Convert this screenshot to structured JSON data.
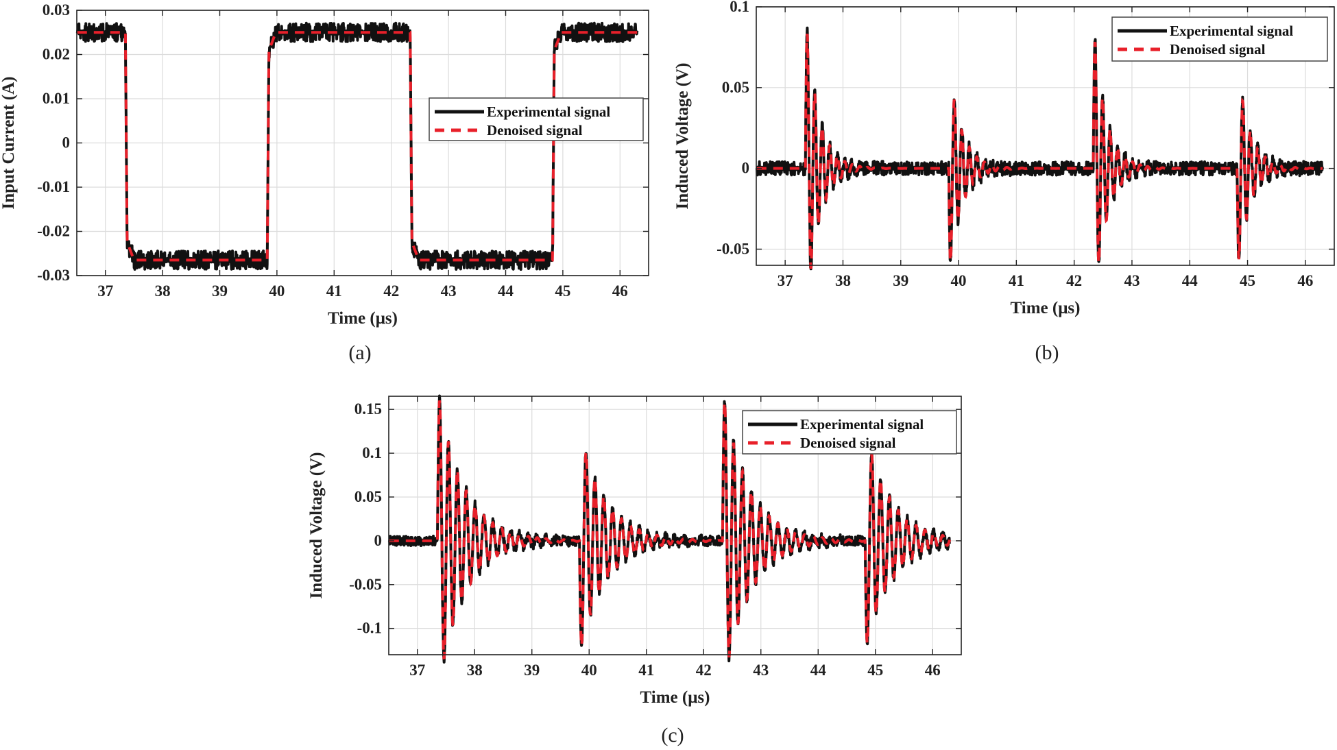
{
  "colors": {
    "experimental": "#111111",
    "denoised": "#e8202a",
    "grid": "#dcdcdc",
    "axis": "#222222"
  },
  "chart_data": [
    {
      "type": "line",
      "caption": "(a)",
      "xlabel": "Time (μs)",
      "ylabel": "Input Current (A)",
      "xlim": [
        36.5,
        46.5
      ],
      "ylim": [
        -0.03,
        0.03
      ],
      "xticks": [
        37,
        38,
        39,
        40,
        41,
        42,
        43,
        44,
        45,
        46
      ],
      "yticks": [
        -0.03,
        -0.02,
        -0.01,
        0,
        0.01,
        0.02,
        0.03
      ],
      "ytick_labels": [
        "-0.03",
        "-0.02",
        "-0.01",
        "0",
        "0.01",
        "0.02",
        "0.03"
      ],
      "grid": true,
      "legend": "center-right",
      "signal": "square",
      "high_level": 0.025,
      "low_level": -0.0265,
      "transitions": [
        {
          "t": 37.35,
          "to": "low"
        },
        {
          "t": 39.83,
          "to": "high"
        },
        {
          "t": 42.33,
          "to": "low"
        },
        {
          "t": 44.82,
          "to": "high"
        }
      ],
      "x_end": 46.3,
      "noise_amplitude": 0.0015,
      "series": [
        {
          "name": "Experimental signal"
        },
        {
          "name": "Denoised signal"
        }
      ]
    },
    {
      "type": "line",
      "caption": "(b)",
      "xlabel": "Time (μs)",
      "ylabel": "Induced Voltage (V)",
      "xlim": [
        36.5,
        46.5
      ],
      "ylim": [
        -0.06,
        0.1
      ],
      "xticks": [
        37,
        38,
        39,
        40,
        41,
        42,
        43,
        44,
        45,
        46
      ],
      "yticks": [
        -0.05,
        0,
        0.05,
        0.1
      ],
      "ytick_labels": [
        "-0.05",
        "0",
        "0.05",
        "0.1"
      ],
      "grid": true,
      "legend": "top-right",
      "signal": "damped",
      "pulses": [
        {
          "t": 37.35,
          "peak": 0.083
        },
        {
          "t": 39.83,
          "peak": -0.057
        },
        {
          "t": 42.33,
          "peak": 0.078
        },
        {
          "t": 44.82,
          "peak": -0.056
        }
      ],
      "period_us": 0.13,
      "decay_us": 0.22,
      "x_end": 46.3,
      "noise_amplitude": 0.003,
      "series": [
        {
          "name": "Experimental signal"
        },
        {
          "name": "Denoised signal"
        }
      ]
    },
    {
      "type": "line",
      "caption": "(c)",
      "xlabel": "Time (μs)",
      "ylabel": "Induced Voltage (V)",
      "xlim": [
        36.5,
        46.5
      ],
      "ylim": [
        -0.13,
        0.165
      ],
      "xticks": [
        37,
        38,
        39,
        40,
        41,
        42,
        43,
        44,
        45,
        46
      ],
      "yticks": [
        -0.1,
        -0.05,
        0,
        0.05,
        0.1,
        0.15
      ],
      "ytick_labels": [
        "-0.1",
        "-0.05",
        "0",
        "0.05",
        "0.1",
        "0.15"
      ],
      "grid": true,
      "legend": "top-right",
      "signal": "damped",
      "pulses": [
        {
          "t": 37.35,
          "peak": 0.16
        },
        {
          "t": 39.83,
          "peak": -0.12
        },
        {
          "t": 42.33,
          "peak": 0.158
        },
        {
          "t": 44.82,
          "peak": -0.117
        }
      ],
      "period_us": 0.155,
      "decay_us": 0.45,
      "x_end": 46.3,
      "noise_amplitude": 0.004,
      "series": [
        {
          "name": "Experimental signal"
        },
        {
          "name": "Denoised signal"
        }
      ]
    }
  ]
}
